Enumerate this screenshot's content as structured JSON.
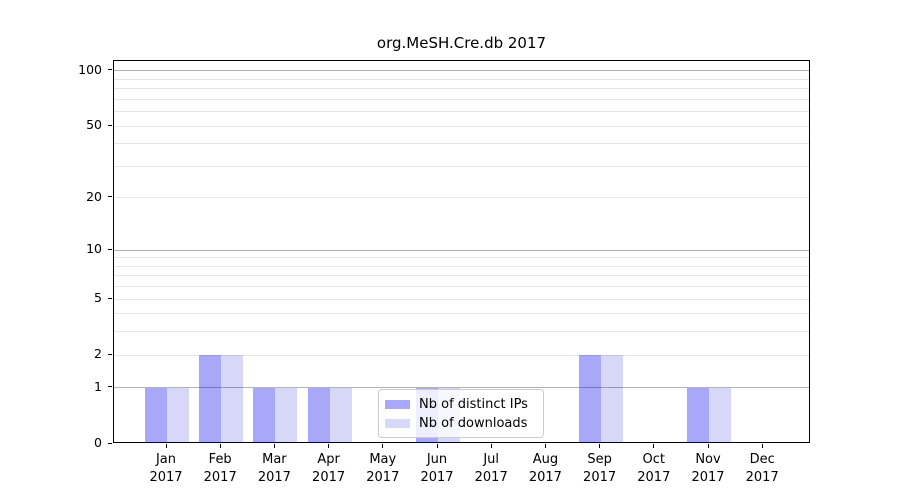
{
  "title": "org.MeSH.Cre.db 2017",
  "colors": {
    "bar_distinct_ips": "rgba(6,6,235,0.35)",
    "bar_downloads": "rgba(3,3,210,0.155)",
    "bar_distinct_ips_solid": "#a8a8f8",
    "bar_downloads_solid": "#d8d8f8",
    "gridline_major": "#b3b3b3",
    "gridline_minor": "#e7e7e7",
    "axis": "#000000",
    "legend_border": "#cccccc"
  },
  "legend": {
    "items": [
      {
        "label": "Nb of distinct IPs",
        "swatch": "distinct-ips"
      },
      {
        "label": "Nb of downloads",
        "swatch": "downloads"
      }
    ]
  },
  "chart_data": {
    "type": "bar",
    "title": "org.MeSH.Cre.db 2017",
    "categories": [
      "Jan 2017",
      "Feb 2017",
      "Mar 2017",
      "Apr 2017",
      "May 2017",
      "Jun 2017",
      "Jul 2017",
      "Aug 2017",
      "Sep 2017",
      "Oct 2017",
      "Nov 2017",
      "Dec 2017"
    ],
    "series": [
      {
        "name": "Nb of distinct IPs",
        "values": [
          1,
          2,
          1,
          1,
          0,
          1,
          0,
          0,
          2,
          0,
          1,
          0
        ]
      },
      {
        "name": "Nb of downloads",
        "values": [
          1,
          2,
          1,
          1,
          0,
          1,
          0,
          0,
          2,
          0,
          1,
          0
        ]
      }
    ],
    "xlabel": "",
    "ylabel": "",
    "y_axis": {
      "scale": "log1p",
      "ylim": [
        0,
        113
      ],
      "ticks": [
        0,
        1,
        2,
        5,
        10,
        20,
        50,
        100
      ],
      "major_gridlines": [
        1,
        10,
        100
      ],
      "minor_gridlines": [
        2,
        3,
        4,
        5,
        6,
        7,
        8,
        9,
        20,
        30,
        40,
        50,
        60,
        70,
        80,
        90
      ]
    },
    "grid": true,
    "legend_position": "bottom-center-inside"
  }
}
